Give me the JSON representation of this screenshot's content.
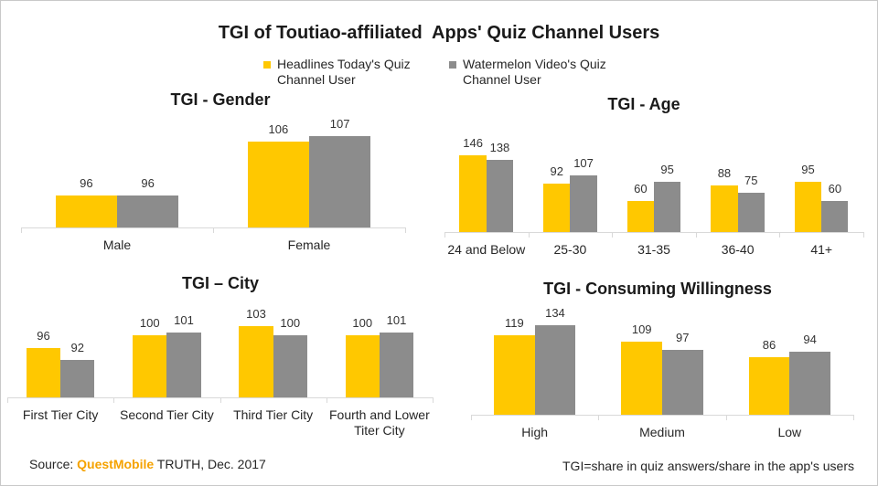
{
  "title": "TGI of Toutiao-affiliated  Apps' Quiz Channel Users",
  "chart_data": [
    {
      "type": "bar",
      "title": "TGI - Gender",
      "categories": [
        "Male",
        "Female"
      ],
      "series": [
        {
          "name": "Headlines Today's Quiz Channel User",
          "color": "#FFC800",
          "values": [
            96,
            106
          ]
        },
        {
          "name": "Watermelon Video's Quiz Channel User",
          "color": "#8C8C8C",
          "values": [
            96,
            107
          ]
        }
      ],
      "ylim": [
        90,
        110
      ],
      "grid": false,
      "legend": "top"
    },
    {
      "type": "bar",
      "title": "TGI - Age",
      "categories": [
        "24 and Below",
        "25-30",
        "31-35",
        "36-40",
        "41+"
      ],
      "series": [
        {
          "name": "Headlines Today's Quiz Channel User",
          "color": "#FFC800",
          "values": [
            146,
            92,
            60,
            88,
            95
          ]
        },
        {
          "name": "Watermelon Video's Quiz Channel User",
          "color": "#8C8C8C",
          "values": [
            138,
            107,
            95,
            75,
            60
          ]
        }
      ],
      "ylim": [
        0,
        160
      ],
      "grid": false
    },
    {
      "type": "bar",
      "title": "TGI – City",
      "categories": [
        "First Tier City",
        "Second Tier City",
        "Third Tier City",
        "Fourth and Lower Titer City"
      ],
      "series": [
        {
          "name": "Headlines Today's Quiz Channel User",
          "color": "#FFC800",
          "values": [
            96,
            100,
            103,
            100
          ]
        },
        {
          "name": "Watermelon Video's Quiz Channel User",
          "color": "#8C8C8C",
          "values": [
            92,
            101,
            100,
            101
          ]
        }
      ],
      "ylim": [
        80,
        110
      ],
      "grid": false
    },
    {
      "type": "bar",
      "title": "TGI - Consuming Willingness",
      "categories": [
        "High",
        "Medium",
        "Low"
      ],
      "series": [
        {
          "name": "Headlines Today's Quiz Channel User",
          "color": "#FFC800",
          "values": [
            119,
            109,
            86
          ]
        },
        {
          "name": "Watermelon Video's Quiz Channel User",
          "color": "#8C8C8C",
          "values": [
            134,
            97,
            94
          ]
        }
      ],
      "ylim": [
        0,
        150
      ],
      "grid": false
    }
  ],
  "footer": {
    "source_prefix": "Source: ",
    "source_brand": "QuestMobile",
    "source_suffix": " TRUTH, Dec. 2017",
    "brand_color": "#F5A200",
    "note": "TGI=share in quiz answers/share in the app's users"
  }
}
